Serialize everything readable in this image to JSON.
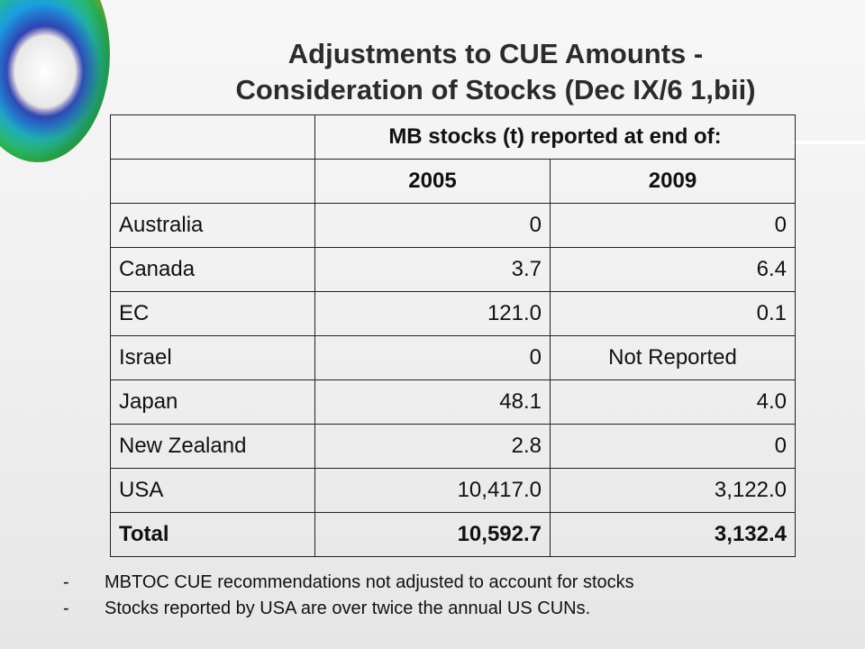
{
  "title": {
    "line1": "Adjustments to CUE Amounts -",
    "line2": "Consideration of Stocks (Dec IX/6 1,bii)"
  },
  "table": {
    "header": "MB stocks (t) reported at end of:",
    "years": [
      "2005",
      "2009"
    ],
    "rows": [
      {
        "country": "Australia",
        "v2005": "0",
        "v2009": "0"
      },
      {
        "country": "Canada",
        "v2005": "3.7",
        "v2009": "6.4"
      },
      {
        "country": "EC",
        "v2005": "121.0",
        "v2009": "0.1"
      },
      {
        "country": "Israel",
        "v2005": "0",
        "v2009": "Not Reported"
      },
      {
        "country": "Japan",
        "v2005": "48.1",
        "v2009": "4.0"
      },
      {
        "country": "New Zealand",
        "v2005": "2.8",
        "v2009": "0"
      },
      {
        "country": "USA",
        "v2005": "10,417.0",
        "v2009": "3,122.0"
      }
    ],
    "total": {
      "label": "Total",
      "v2005": "10,592.7",
      "v2009": "3,132.4"
    }
  },
  "notes": [
    {
      "dash": "-",
      "text": "MBTOC CUE recommendations not adjusted to account for stocks"
    },
    {
      "dash": "-",
      "text": "Stocks reported by USA are over twice the annual US CUNs."
    }
  ],
  "colors": {
    "background": "#f0f0f0",
    "border": "#222222",
    "title": "#2b2b2b"
  },
  "decoration": {
    "icon": "ozone-globe-icon"
  }
}
